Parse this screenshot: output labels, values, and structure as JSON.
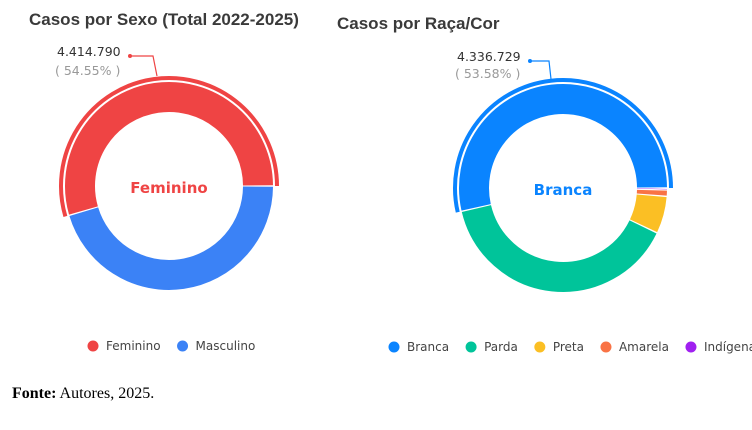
{
  "caption": {
    "label": "Fonte:",
    "text": " Autores, 2025."
  },
  "chart_data": [
    {
      "type": "donut",
      "title": "Casos por Sexo (Total 2022-2025)",
      "legend_position": "bottom",
      "highlighted": "Feminino",
      "center_label": "Feminino",
      "callout": {
        "value": "4.414.790",
        "percent": "( 54.55% )"
      },
      "series": [
        {
          "name": "Feminino",
          "value": 4414790,
          "color": "#ef4444"
        },
        {
          "name": "Masculino",
          "value": 3678590,
          "color": "#3b82f6"
        }
      ]
    },
    {
      "type": "donut",
      "title": "Casos por Raça/Cor",
      "legend_position": "bottom",
      "highlighted": "Branca",
      "center_label": "Branca",
      "callout": {
        "value": "4.336.729",
        "percent": "( 53.58% )"
      },
      "series": [
        {
          "name": "Branca",
          "value": 4336729,
          "color": "#0a84ff"
        },
        {
          "name": "Parda",
          "value": 3180000,
          "color": "#00c49a"
        },
        {
          "name": "Preta",
          "value": 470000,
          "color": "#fbbf24"
        },
        {
          "name": "Amarela",
          "value": 80000,
          "color": "#f97345"
        },
        {
          "name": "Indígena",
          "value": 24000,
          "color": "#a020f0"
        }
      ]
    }
  ]
}
